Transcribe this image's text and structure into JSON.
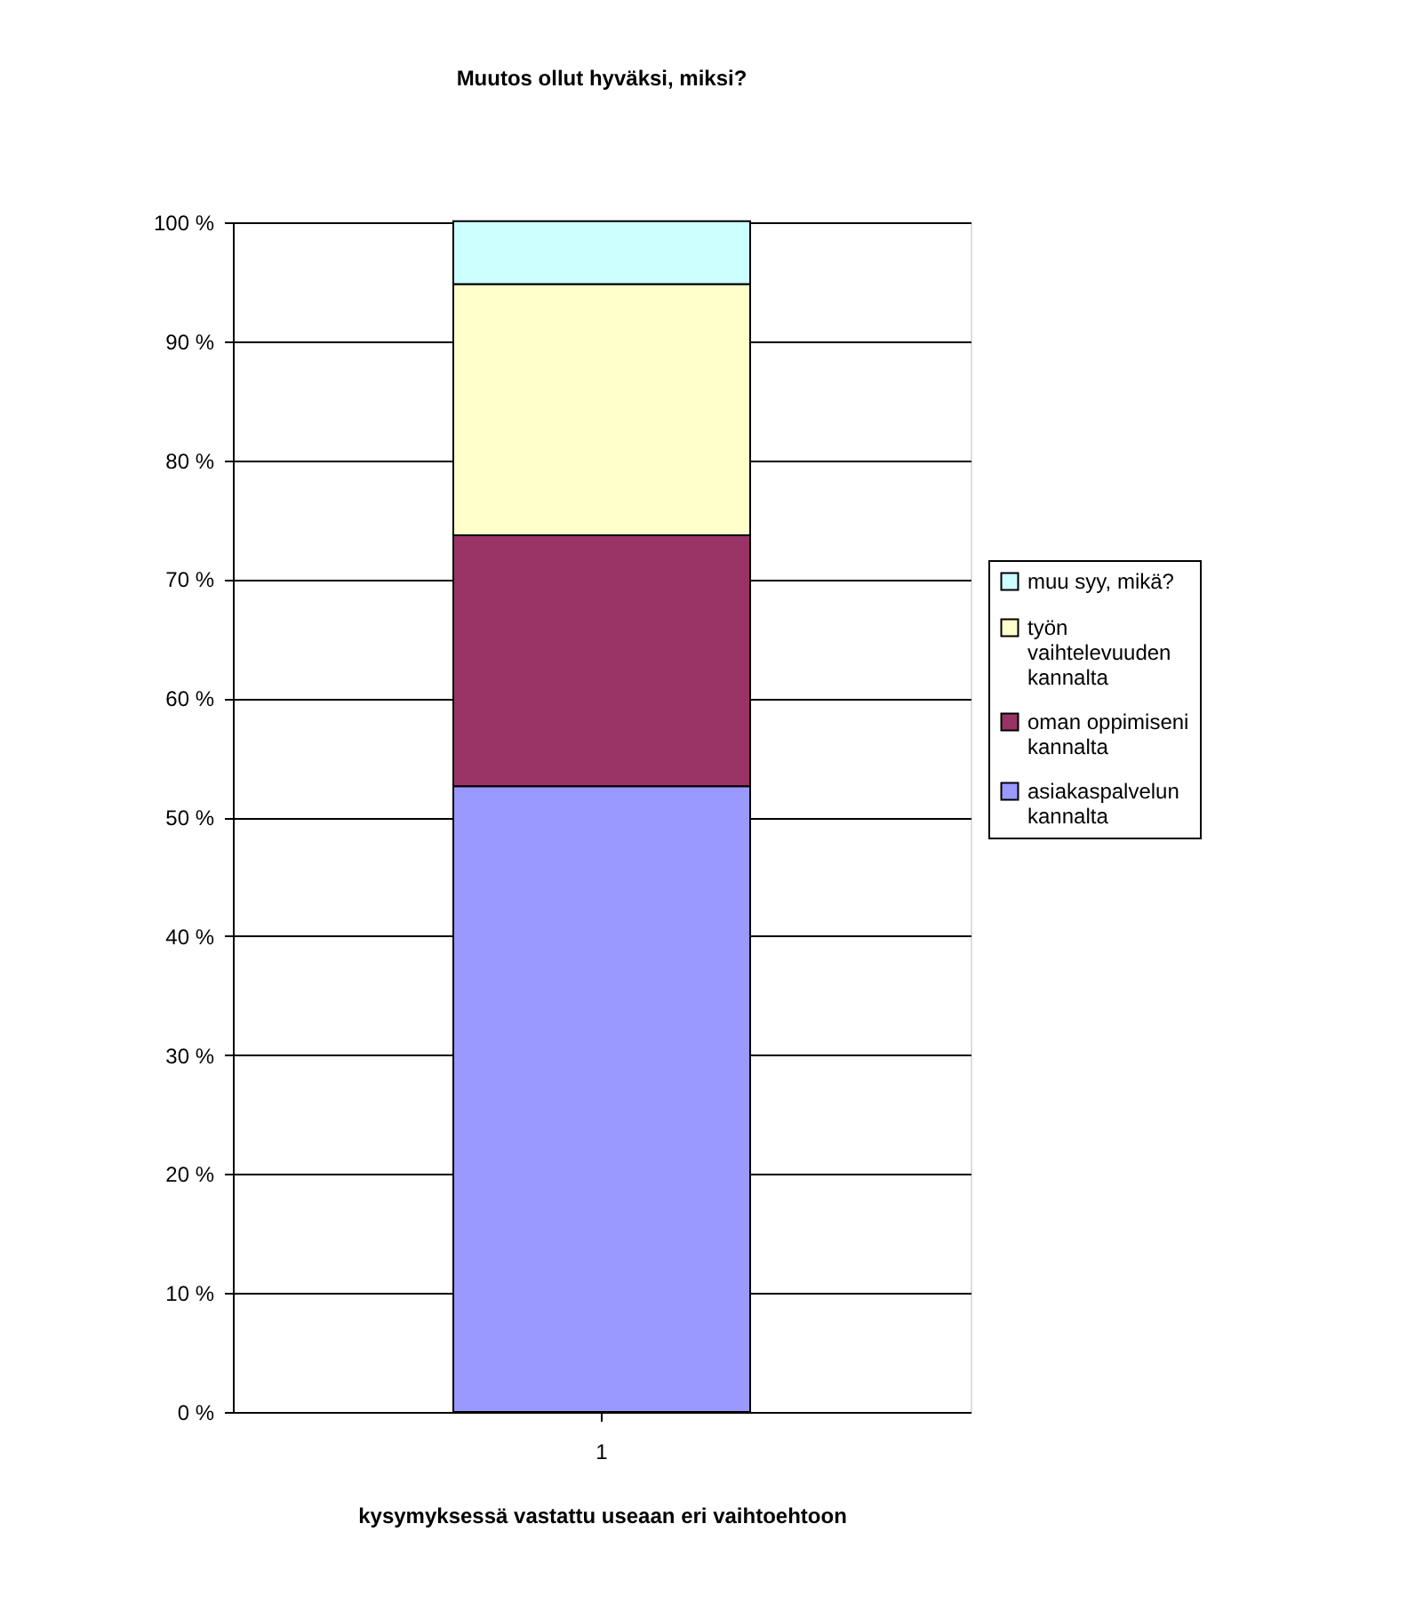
{
  "chart_data": {
    "type": "bar",
    "title": "Muutos ollut hyväksi, miksi?",
    "xlabel": "kysymyksessä vastattu useaan eri vaihtoehtoon",
    "categories": [
      "1"
    ],
    "stacked": true,
    "grid": "y",
    "legend": "right",
    "ylim": [
      0,
      100
    ],
    "yticks": [
      {
        "value": 0,
        "label": "0 %"
      },
      {
        "value": 10,
        "label": "10 %"
      },
      {
        "value": 20,
        "label": "20 %"
      },
      {
        "value": 30,
        "label": "30 %"
      },
      {
        "value": 40,
        "label": "40 %"
      },
      {
        "value": 50,
        "label": "50 %"
      },
      {
        "value": 60,
        "label": "60 %"
      },
      {
        "value": 70,
        "label": "70 %"
      },
      {
        "value": 80,
        "label": "80 %"
      },
      {
        "value": 90,
        "label": "90 %"
      },
      {
        "value": 100,
        "label": "100 %"
      }
    ],
    "series": [
      {
        "name": "asiakaspalvelun kannalta",
        "color": "#9999ff",
        "values": [
          52.6
        ]
      },
      {
        "name": "oman oppimiseni kannalta",
        "color": "#993366",
        "values": [
          21.1
        ]
      },
      {
        "name": "työn vaihtelevuuden kannalta",
        "color": "#ffffcc",
        "values": [
          21.1
        ]
      },
      {
        "name": "muu syy, mikä?",
        "color": "#ccffff",
        "values": [
          5.3
        ]
      }
    ]
  }
}
